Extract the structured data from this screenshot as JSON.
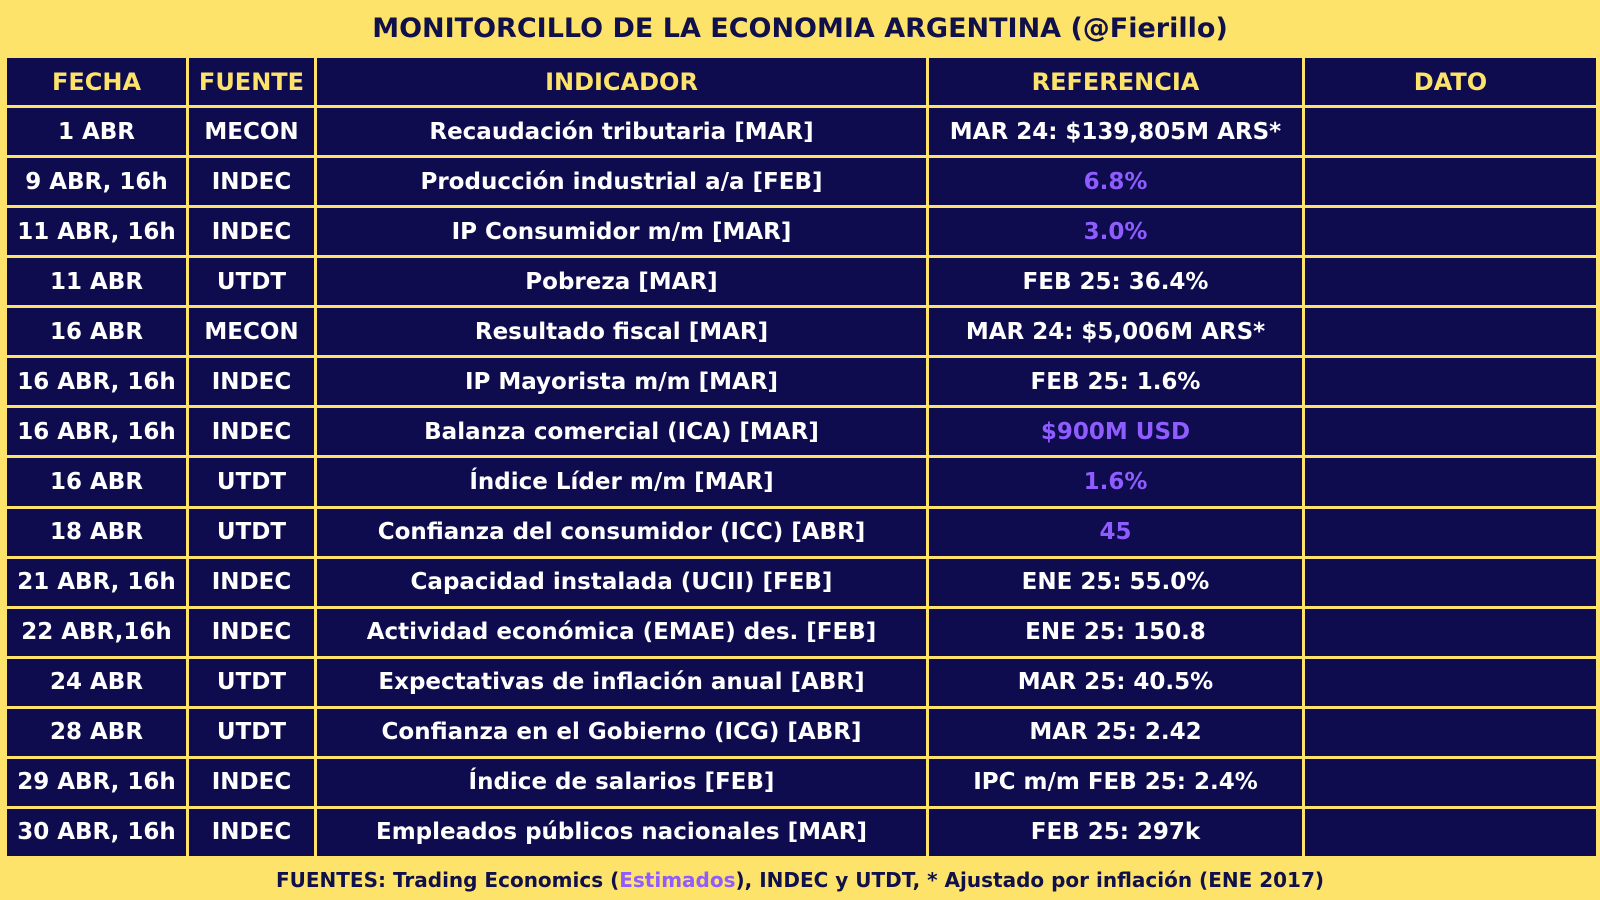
{
  "title": "MONITORCILLO DE LA ECONOMIA ARGENTINA (@Fierillo)",
  "columns": [
    "FECHA",
    "FUENTE",
    "INDICADOR",
    "REFERENCIA",
    "DATO"
  ],
  "rows": [
    {
      "fecha": "1 ABR",
      "fuente": "MECON",
      "indicador": "Recaudación tributaria [MAR]",
      "referencia": "MAR 24: $139,805M ARS*",
      "dato": "",
      "estimado": false
    },
    {
      "fecha": "9 ABR, 16h",
      "fuente": "INDEC",
      "indicador": "Producción industrial a/a [FEB]",
      "referencia": "6.8%",
      "dato": "",
      "estimado": true
    },
    {
      "fecha": "11 ABR, 16h",
      "fuente": "INDEC",
      "indicador": "IP Consumidor m/m [MAR]",
      "referencia": "3.0%",
      "dato": "",
      "estimado": true
    },
    {
      "fecha": "11 ABR",
      "fuente": "UTDT",
      "indicador": "Pobreza [MAR]",
      "referencia": "FEB 25: 36.4%",
      "dato": "",
      "estimado": false
    },
    {
      "fecha": "16 ABR",
      "fuente": "MECON",
      "indicador": "Resultado fiscal [MAR]",
      "referencia": "MAR 24: $5,006M ARS*",
      "dato": "",
      "estimado": false
    },
    {
      "fecha": "16 ABR, 16h",
      "fuente": "INDEC",
      "indicador": "IP Mayorista m/m [MAR]",
      "referencia": "FEB 25: 1.6%",
      "dato": "",
      "estimado": false
    },
    {
      "fecha": "16 ABR, 16h",
      "fuente": "INDEC",
      "indicador": "Balanza comercial (ICA) [MAR]",
      "referencia": "$900M USD",
      "dato": "",
      "estimado": true
    },
    {
      "fecha": "16 ABR",
      "fuente": "UTDT",
      "indicador": "Índice Líder m/m [MAR]",
      "referencia": "1.6%",
      "dato": "",
      "estimado": true
    },
    {
      "fecha": "18 ABR",
      "fuente": "UTDT",
      "indicador": "Confianza del consumidor (ICC) [ABR]",
      "referencia": "45",
      "dato": "",
      "estimado": true
    },
    {
      "fecha": "21 ABR, 16h",
      "fuente": "INDEC",
      "indicador": "Capacidad instalada (UCII) [FEB]",
      "referencia": "ENE 25: 55.0%",
      "dato": "",
      "estimado": false
    },
    {
      "fecha": "22 ABR,16h",
      "fuente": "INDEC",
      "indicador": "Actividad económica (EMAE) des. [FEB]",
      "referencia": "ENE 25: 150.8",
      "dato": "",
      "estimado": false
    },
    {
      "fecha": "24 ABR",
      "fuente": "UTDT",
      "indicador": "Expectativas de inflación anual [ABR]",
      "referencia": "MAR 25: 40.5%",
      "dato": "",
      "estimado": false
    },
    {
      "fecha": "28 ABR",
      "fuente": "UTDT",
      "indicador": "Confianza en el Gobierno (ICG) [ABR]",
      "referencia": "MAR 25: 2.42",
      "dato": "",
      "estimado": false
    },
    {
      "fecha": "29 ABR, 16h",
      "fuente": "INDEC",
      "indicador": "Índice de salarios [FEB]",
      "referencia": "IPC m/m FEB 25: 2.4%",
      "dato": "",
      "estimado": false
    },
    {
      "fecha": "30 ABR, 16h",
      "fuente": "INDEC",
      "indicador": "Empleados públicos nacionales [MAR]",
      "referencia": "FEB 25: 297k",
      "dato": "",
      "estimado": false
    }
  ],
  "footer": {
    "before": "FUENTES: Trading Economics (",
    "highlight": "Estimados",
    "after": "), INDEC y UTDT, * Ajustado por inflación (ENE 2017)"
  },
  "colors": {
    "background": "#fde36a",
    "cell": "#0e0c4f",
    "header_text": "#fde36a",
    "cell_text": "#ffffff",
    "estimated_text": "#8f5cff"
  }
}
